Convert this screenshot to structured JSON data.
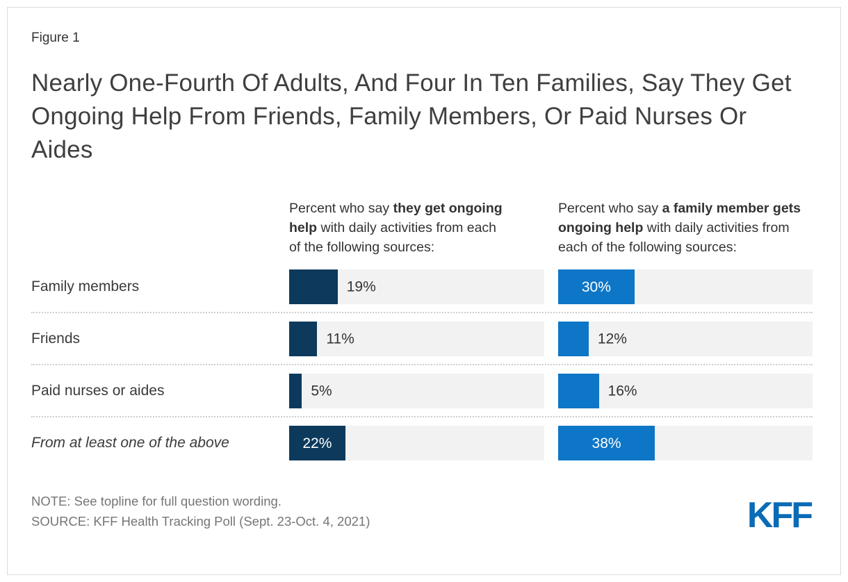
{
  "figure_label": "Figure 1",
  "title": "Nearly One-Fourth Of Adults, And Four In Ten Families, Say They Get Ongoing Help From Friends, Family Members, Or Paid Nurses Or Aides",
  "note": "NOTE: See topline for full question wording.",
  "source": "SOURCE: KFF Health Tracking Poll (Sept. 23-Oct. 4, 2021)",
  "logo_text": "KFF",
  "colors": {
    "navy": "#0d3a5c",
    "blue": "#0d76c6",
    "track": "#f2f2f2",
    "inside_label": "#ffffff",
    "outside_label": "#333333",
    "kff_blue": "#0a6bb6"
  },
  "chart_data": {
    "type": "bar",
    "orientation": "horizontal",
    "xlim": [
      0,
      100
    ],
    "value_suffix": "%",
    "grid": false,
    "categories": [
      "Family members",
      "Friends",
      "Paid nurses or aides",
      "From at least one of the above"
    ],
    "last_category_italic": true,
    "inside_label_threshold": 20,
    "series": [
      {
        "name": "Adults who get ongoing help",
        "color": "#0d3a5c",
        "values": [
          19,
          11,
          5,
          22
        ],
        "header_segments": [
          {
            "text": "Percent who say ",
            "bold": false
          },
          {
            "text": "they get ongoing help",
            "bold": true
          },
          {
            "text": " with daily activities from each of the following sources:",
            "bold": false
          }
        ]
      },
      {
        "name": "Family member gets ongoing help",
        "color": "#0d76c6",
        "values": [
          30,
          12,
          16,
          38
        ],
        "header_segments": [
          {
            "text": "Percent who say ",
            "bold": false
          },
          {
            "text": "a family member gets ongoing help",
            "bold": true
          },
          {
            "text": " with daily activities from each of the following sources:",
            "bold": false
          }
        ]
      }
    ]
  }
}
